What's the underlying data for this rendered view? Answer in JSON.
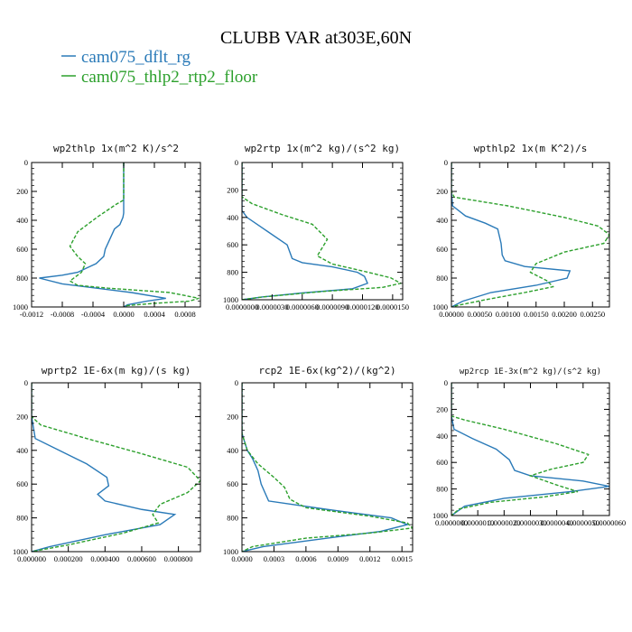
{
  "figure": {
    "title": "CLUBB VAR at303E,60N",
    "legend": [
      {
        "name": "cam075_dflt_rg",
        "color": "#2a7ab8"
      },
      {
        "name": "cam075_thlp2_rtp2_floor",
        "color": "#2ca02c"
      }
    ]
  },
  "chart_data": [
    {
      "type": "line",
      "title": "wp2thlp  1x(m^2 K)/s^2",
      "xlim": [
        -0.0012,
        0.001
      ],
      "ylim": [
        1000,
        0
      ],
      "y_inverted": true,
      "xticks": [
        "-0.0012",
        "-0.0008",
        "-0.0004",
        "0.0000",
        "0.0004",
        "0.0008"
      ],
      "xtick_values": [
        -0.0012,
        -0.0008,
        -0.0004,
        0.0,
        0.0004,
        0.0008
      ],
      "yticks": [
        "0",
        "200",
        "400",
        "600",
        "800",
        "1000"
      ],
      "ytick_values": [
        0,
        200,
        400,
        600,
        800,
        1000
      ],
      "series": [
        {
          "name": "cam075_dflt_rg",
          "x": [
            0,
            0,
            0,
            -1e-05,
            -5e-05,
            -0.00012,
            -0.00018,
            -0.00024,
            -0.00026,
            -0.00036,
            -0.00048,
            -0.0006,
            -0.0008,
            -0.0011,
            -0.0008,
            0.0001,
            0.00055,
            0.0003,
            5e-05,
            0
          ],
          "y": [
            0,
            200,
            350,
            380,
            430,
            460,
            530,
            600,
            650,
            700,
            730,
            760,
            780,
            800,
            840,
            900,
            940,
            960,
            985,
            1000
          ]
        },
        {
          "name": "cam075_thlp2_rtp2_floor",
          "x": [
            0,
            0,
            0,
            -0.0001,
            -0.00035,
            -0.0006,
            -0.0007,
            -0.0006,
            -0.0005,
            -0.00055,
            -0.0007,
            -0.0006,
            -0.0002,
            0.0006,
            0.00098,
            0.00085,
            0.0004,
            5e-05,
            0
          ],
          "y": [
            0,
            200,
            260,
            290,
            380,
            480,
            580,
            650,
            700,
            760,
            820,
            850,
            870,
            900,
            940,
            960,
            975,
            990,
            1000
          ]
        }
      ]
    },
    {
      "type": "line",
      "title": "wp2rtp  1x(m^2 kg)/(s^2 kg)",
      "xlim": [
        0.0,
        1.6e-05
      ],
      "ylim": [
        1000,
        0
      ],
      "y_inverted": true,
      "xticks": [
        "0.0000000",
        "0.0000030",
        "0.0000060",
        "0.0000090",
        "0.0000120",
        "0.0000150"
      ],
      "xtick_values": [
        0.0,
        3e-06,
        6e-06,
        9e-06,
        1.2e-05,
        1.5e-05
      ],
      "yticks": [
        "0",
        "200",
        "400",
        "600",
        "800",
        "1000"
      ],
      "ytick_values": [
        0,
        200,
        400,
        600,
        800,
        1000
      ],
      "series": [
        {
          "name": "cam075_dflt_rg",
          "x": [
            0,
            0,
            0,
            5e-07,
            2.5e-06,
            4.5e-06,
            5e-06,
            6e-06,
            9e-06,
            1.15e-05,
            1.22e-05,
            1.25e-05,
            1.1e-05,
            6e-06,
            2e-06,
            0
          ],
          "y": [
            0,
            200,
            350,
            400,
            500,
            600,
            700,
            730,
            760,
            800,
            830,
            880,
            920,
            950,
            980,
            1000
          ]
        },
        {
          "name": "cam075_thlp2_rtp2_floor",
          "x": [
            0,
            0,
            0,
            1e-06,
            4e-06,
            7e-06,
            8.5e-06,
            8e-06,
            7.5e-06,
            9e-06,
            1.2e-05,
            1.48e-05,
            1.58e-05,
            1.4e-05,
            8e-06,
            2e-06,
            0
          ],
          "y": [
            0,
            200,
            250,
            300,
            380,
            450,
            560,
            620,
            680,
            740,
            790,
            840,
            880,
            910,
            940,
            980,
            1000
          ]
        }
      ]
    },
    {
      "type": "line",
      "title": "wpthlp2  1x(m K^2)/s",
      "xlim": [
        0.0,
        0.0028
      ],
      "ylim": [
        1000,
        0
      ],
      "y_inverted": true,
      "xticks": [
        "0.00000",
        "0.00050",
        "0.00100",
        "0.00150",
        "0.00200",
        "0.00250"
      ],
      "xtick_values": [
        0.0,
        0.0005,
        0.001,
        0.0015,
        0.002,
        0.0025
      ],
      "yticks": [
        "0",
        "200",
        "400",
        "600",
        "800",
        "1000"
      ],
      "ytick_values": [
        0,
        200,
        400,
        600,
        800,
        1000
      ],
      "series": [
        {
          "name": "cam075_dflt_rg",
          "x": [
            0,
            0,
            2e-05,
            0.00025,
            0.0006,
            0.00082,
            0.00088,
            0.0009,
            0.00095,
            0.0013,
            0.0021,
            0.00205,
            0.0015,
            0.0007,
            0.0002,
            0
          ],
          "y": [
            0,
            200,
            300,
            370,
            420,
            460,
            560,
            640,
            680,
            720,
            750,
            800,
            850,
            900,
            960,
            1000
          ]
        },
        {
          "name": "cam075_thlp2_rtp2_floor",
          "x": [
            0,
            0,
            5e-05,
            0.001,
            0.002,
            0.0026,
            0.0028,
            0.0027,
            0.002,
            0.0015,
            0.0014,
            0.0017,
            0.0018,
            0.0013,
            0.0006,
            0.0001,
            0
          ],
          "y": [
            0,
            200,
            240,
            300,
            380,
            440,
            500,
            560,
            620,
            700,
            760,
            820,
            860,
            900,
            950,
            990,
            1000
          ]
        }
      ]
    },
    {
      "type": "line",
      "title": "wprtp2  1E-6x(m kg)/(s kg)",
      "xlim": [
        0.0,
        0.00092
      ],
      "ylim": [
        1000,
        0
      ],
      "y_inverted": true,
      "xticks": [
        "0.000000",
        "0.000200",
        "0.000400",
        "0.000600",
        "0.000800"
      ],
      "xtick_values": [
        0.0,
        0.0002,
        0.0004,
        0.0006,
        0.0008
      ],
      "yticks": [
        "0",
        "200",
        "400",
        "600",
        "800",
        "1000"
      ],
      "ytick_values": [
        0,
        200,
        400,
        600,
        800,
        1000
      ],
      "series": [
        {
          "name": "cam075_dflt_rg",
          "x": [
            0,
            0,
            2e-05,
            0.00015,
            0.0003,
            0.00041,
            0.00042,
            0.00036,
            0.0004,
            0.0006,
            0.00078,
            0.0007,
            0.0004,
            0.0001,
            0
          ],
          "y": [
            0,
            200,
            330,
            400,
            480,
            560,
            610,
            660,
            700,
            750,
            780,
            840,
            900,
            970,
            1000
          ]
        },
        {
          "name": "cam075_thlp2_rtp2_floor",
          "x": [
            0,
            0,
            5e-05,
            0.0003,
            0.0006,
            0.00085,
            0.00092,
            0.00085,
            0.0007,
            0.00066,
            0.00069,
            0.0005,
            0.0002,
            0
          ],
          "y": [
            0,
            200,
            250,
            330,
            420,
            500,
            580,
            650,
            720,
            780,
            830,
            890,
            960,
            1000
          ]
        }
      ]
    },
    {
      "type": "line",
      "title": "rcp2  1E-6x(kg^2)/(kg^2)",
      "xlim": [
        0.0,
        0.0016
      ],
      "ylim": [
        1000,
        0
      ],
      "y_inverted": true,
      "xticks": [
        "0.0000",
        "0.0003",
        "0.0006",
        "0.0009",
        "0.0012",
        "0.0015"
      ],
      "xtick_values": [
        0.0,
        0.0003,
        0.0006,
        0.0009,
        0.0012,
        0.0015
      ],
      "yticks": [
        "0",
        "200",
        "400",
        "600",
        "800",
        "1000"
      ],
      "ytick_values": [
        0,
        200,
        400,
        600,
        800,
        1000
      ],
      "series": [
        {
          "name": "cam075_dflt_rg",
          "x": [
            0,
            0,
            5e-05,
            0.0001,
            0.00015,
            0.00018,
            0.00025,
            0.0008,
            0.0014,
            0.00155,
            0.0013,
            0.0008,
            0.0002,
            0
          ],
          "y": [
            0,
            300,
            400,
            450,
            520,
            600,
            700,
            750,
            800,
            840,
            880,
            920,
            970,
            1000
          ]
        },
        {
          "name": "cam075_thlp2_rtp2_floor",
          "x": [
            0,
            0,
            5e-05,
            0.00015,
            0.0003,
            0.0004,
            0.00045,
            0.0006,
            0.0012,
            0.00155,
            0.0016,
            0.0012,
            0.0006,
            0.0001,
            0
          ],
          "y": [
            0,
            300,
            400,
            480,
            560,
            620,
            690,
            740,
            790,
            830,
            860,
            890,
            920,
            970,
            1000
          ]
        }
      ]
    },
    {
      "type": "line",
      "title": "wp2rcp  1E-3x(m^2 kg)/(s^2 kg)",
      "xlim": [
        0.0,
        6e-06
      ],
      "ylim": [
        1000,
        0
      ],
      "y_inverted": true,
      "xticks": [
        "0.0000000",
        "0.0000010",
        "0.0000020",
        "0.0000030",
        "0.0000040",
        "0.0000050",
        "0.0000060"
      ],
      "xtick_values": [
        0.0,
        1e-06,
        2e-06,
        3e-06,
        4e-06,
        5e-06,
        6e-06
      ],
      "yticks": [
        "0",
        "200",
        "400",
        "600",
        "800",
        "1000"
      ],
      "ytick_values": [
        0,
        200,
        400,
        600,
        800,
        1000
      ],
      "series": [
        {
          "name": "cam075_dflt_rg",
          "x": [
            0,
            0,
            1e-07,
            8e-07,
            1.7e-06,
            2.2e-06,
            2.4e-06,
            3e-06,
            5e-06,
            6e-06,
            4.5e-06,
            2e-06,
            5e-07,
            0
          ],
          "y": [
            0,
            250,
            350,
            420,
            500,
            580,
            660,
            700,
            740,
            780,
            820,
            870,
            930,
            1000
          ]
        },
        {
          "name": "cam075_thlp2_rtp2_floor",
          "x": [
            0,
            0,
            5e-07,
            2e-06,
            4e-06,
            5.2e-06,
            5e-06,
            3.8e-06,
            3e-06,
            4e-06,
            4.8e-06,
            3.5e-06,
            1.5e-06,
            3e-07,
            0
          ],
          "y": [
            0,
            250,
            280,
            350,
            460,
            540,
            600,
            650,
            700,
            770,
            820,
            860,
            900,
            950,
            1000
          ]
        }
      ]
    }
  ]
}
